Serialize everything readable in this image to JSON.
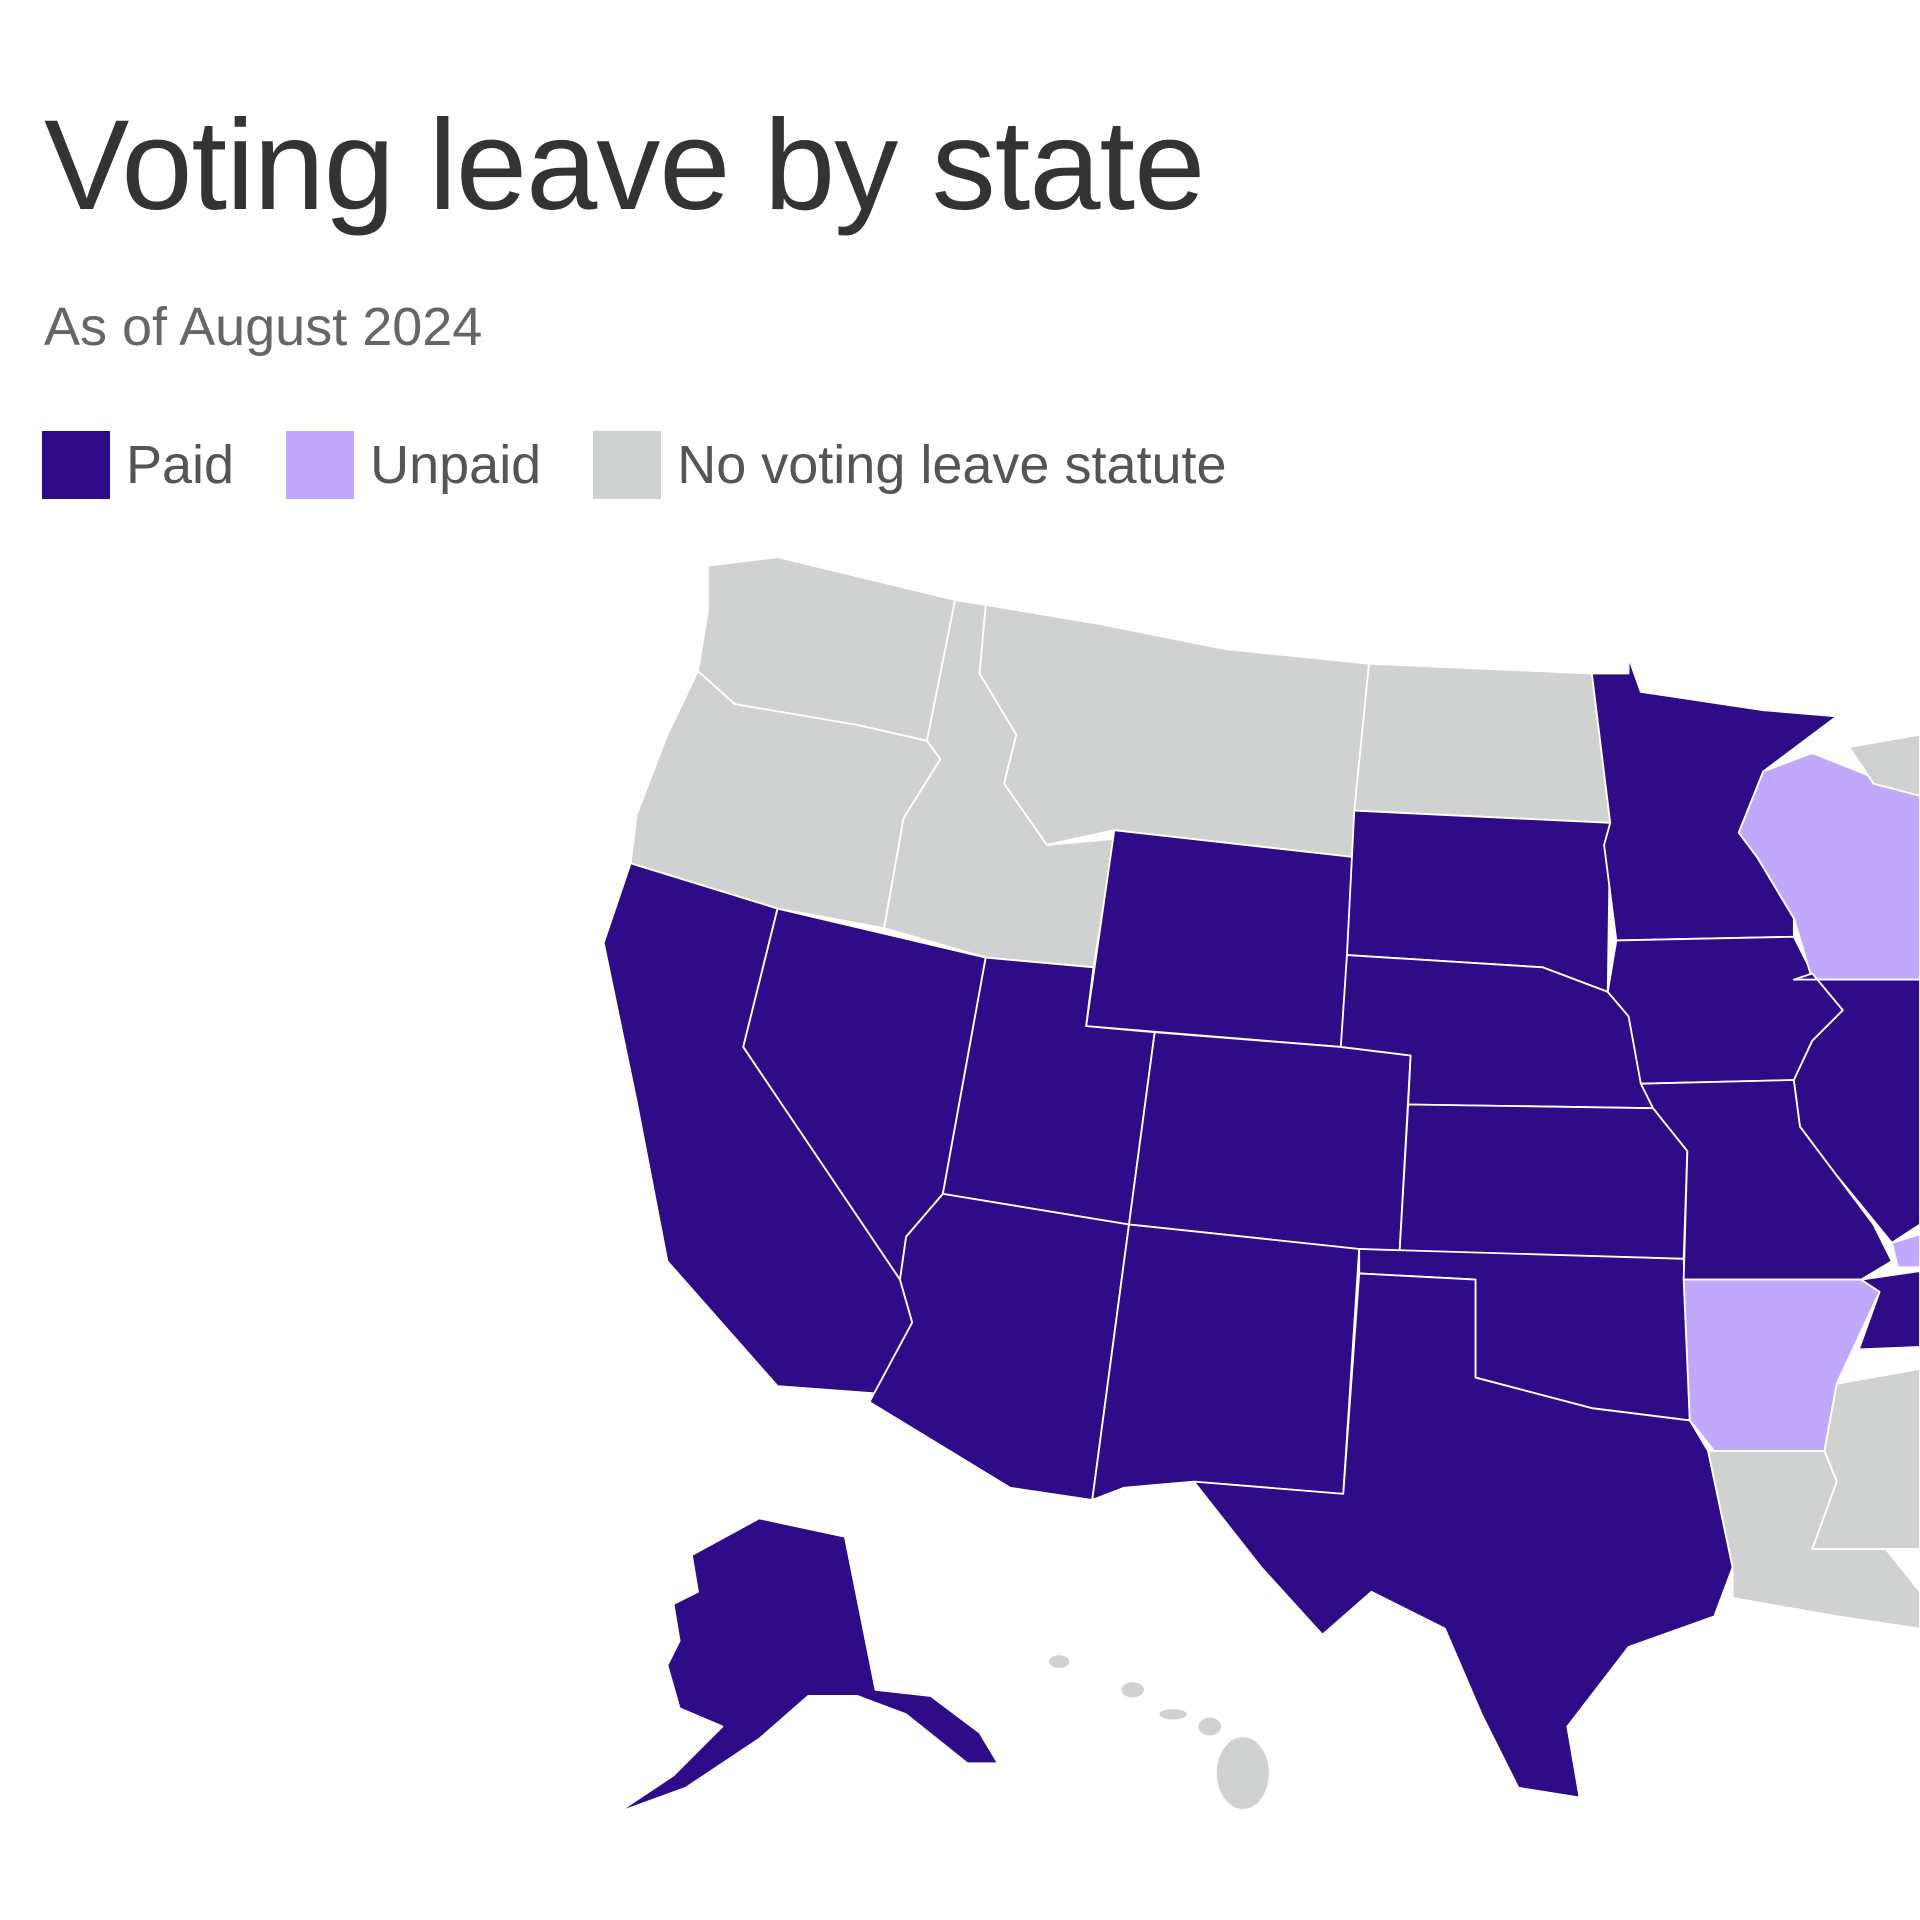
{
  "title": "Voting leave by state",
  "subtitle": "As of August 2024",
  "colors": {
    "paid": "#2e0c87",
    "unpaid": "#c0a9fd",
    "none": "#d0d2d1"
  },
  "legend": [
    {
      "label": "Paid",
      "key": "paid"
    },
    {
      "label": "Unpaid",
      "key": "unpaid"
    },
    {
      "label": "No voting leave statute",
      "key": "none"
    }
  ],
  "chart_data": {
    "type": "choropleth",
    "title": "Voting leave by state",
    "subtitle": "As of August 2024",
    "categories": [
      "Paid",
      "Unpaid",
      "No voting leave statute"
    ],
    "states": {
      "WA": "none",
      "OR": "none",
      "ID": "none",
      "MT": "none",
      "ND": "none",
      "CA": "paid",
      "NV": "paid",
      "UT": "paid",
      "AZ": "paid",
      "WY": "paid",
      "CO": "paid",
      "NM": "paid",
      "SD": "paid",
      "NE": "paid",
      "KS": "paid",
      "OK": "paid",
      "TX": "paid",
      "MN": "paid",
      "IA": "paid",
      "MO": "paid",
      "IL": "paid",
      "TN": "paid",
      "AK": "paid",
      "WI": "unpaid",
      "AR": "unpaid",
      "KY": "unpaid",
      "LA": "none",
      "MS": "none",
      "MI": "none",
      "HI": "none"
    }
  }
}
